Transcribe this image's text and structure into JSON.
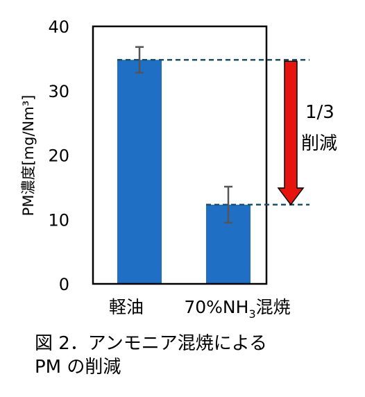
{
  "chart_data": {
    "type": "bar",
    "categories": [
      "軽油",
      "70%NH₃混焼"
    ],
    "values": [
      34.8,
      12.3
    ],
    "error": [
      2.0,
      2.8
    ],
    "ylabel": "PM濃度[mg/Nm³]",
    "ylim": [
      0,
      40
    ],
    "yticks": [
      0,
      10,
      20,
      30,
      40
    ],
    "bar_color": "#1f6fc5",
    "error_color": "#555555",
    "reference_line_color": "#1b4f6e",
    "arrow_color": "#e5140e",
    "annotation": [
      "1/3",
      "削減"
    ]
  },
  "caption": [
    "図 2．アンモニア混焼による",
    "PM の削減"
  ]
}
